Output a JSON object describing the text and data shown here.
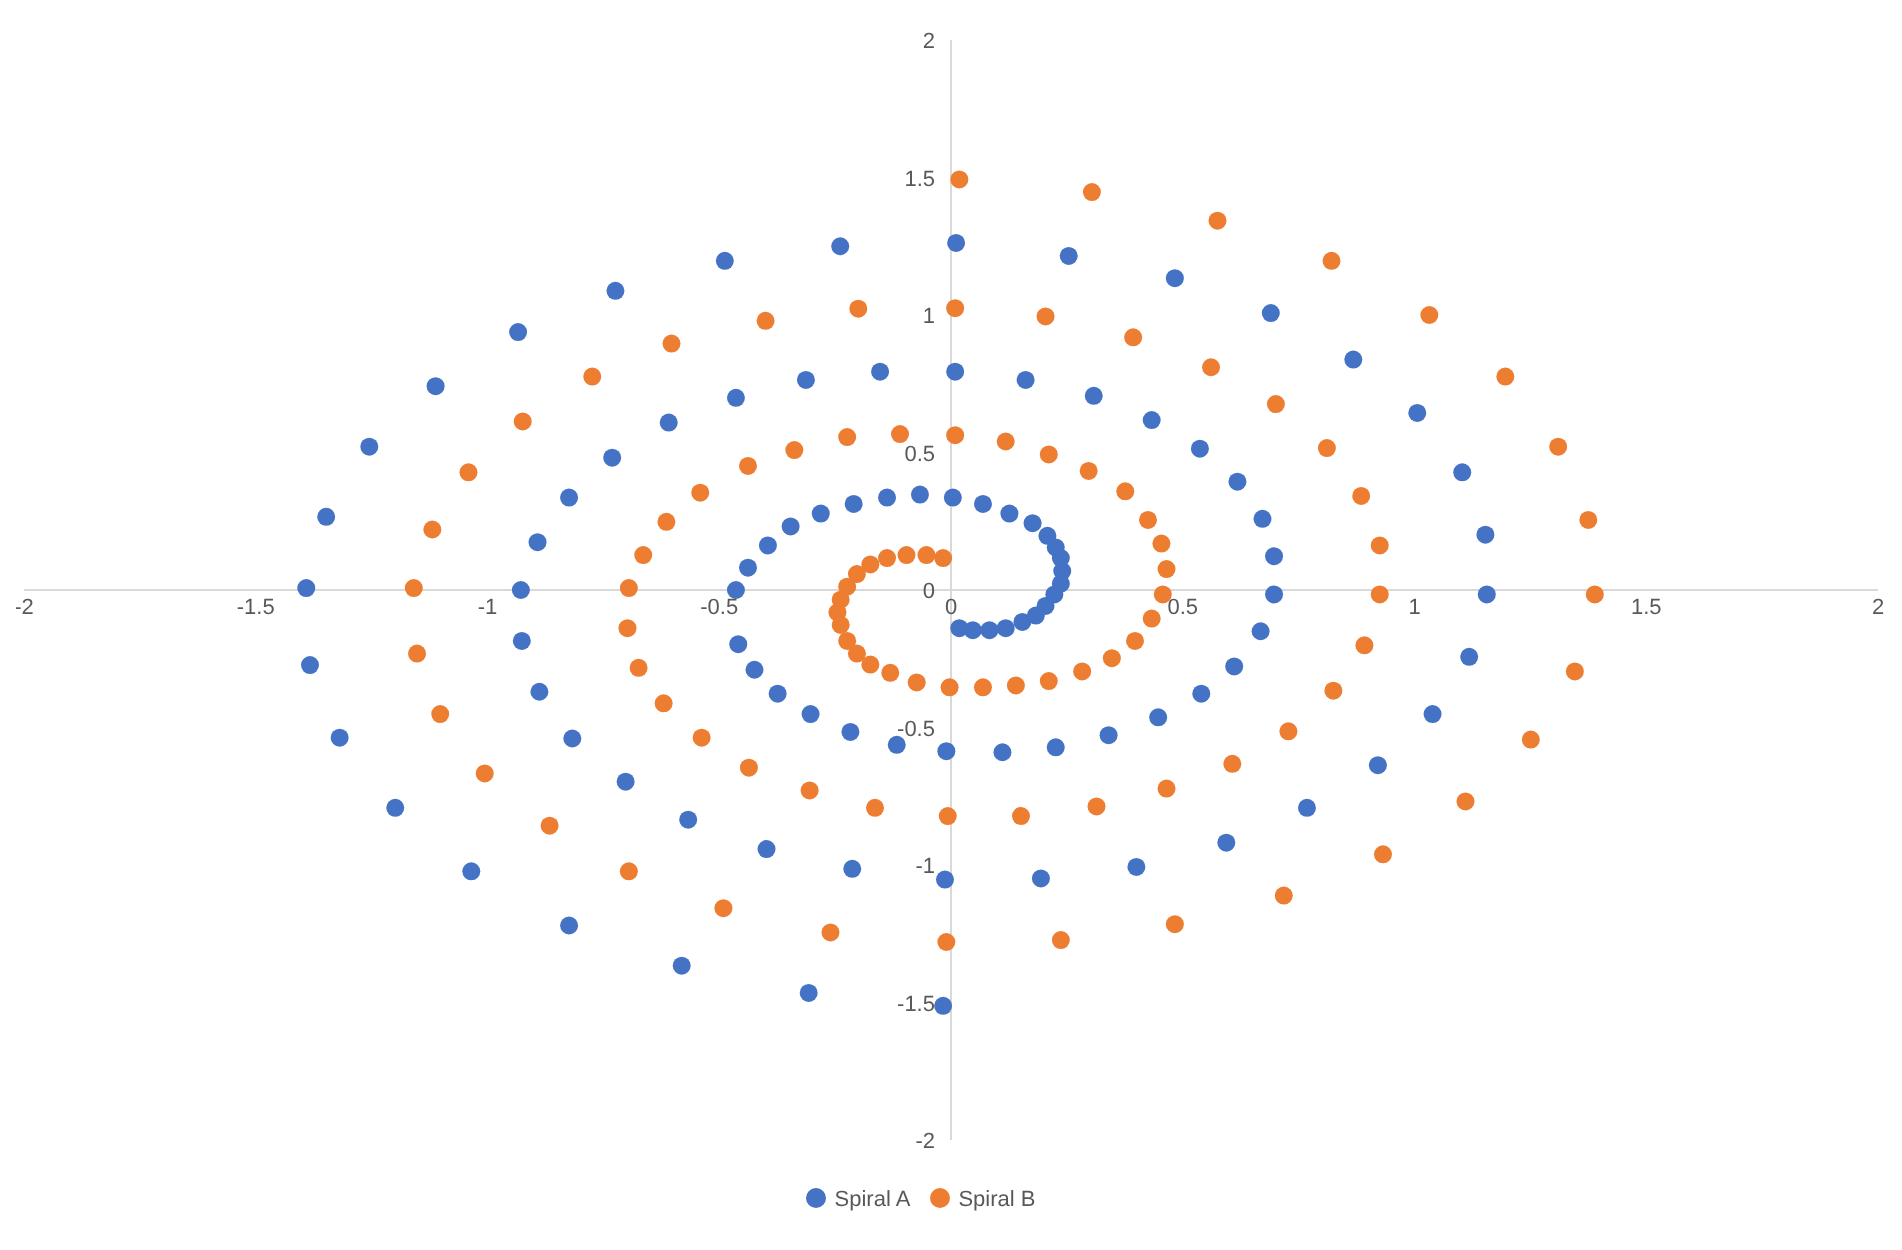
{
  "chart_data": {
    "type": "scatter",
    "xlim": [
      -2,
      2
    ],
    "ylim": [
      -2,
      2
    ],
    "xticks": [
      -2,
      -1.5,
      -1,
      -0.5,
      0,
      0.5,
      1,
      1.5,
      2
    ],
    "yticks": [
      -2,
      -1.5,
      -1,
      -0.5,
      0,
      0.5,
      1,
      1.5,
      2
    ],
    "grid": false,
    "legend": "bottom",
    "marker": "circle",
    "series": [
      {
        "name": "Spiral A",
        "color": "#4472c4",
        "x": [
          0.018,
          0.047,
          0.083,
          0.118,
          0.154,
          0.183,
          0.204,
          0.223,
          0.237,
          0.24,
          0.237,
          0.226,
          0.208,
          0.176,
          0.126,
          0.069,
          0.004,
          -0.067,
          -0.138,
          -0.21,
          -0.281,
          -0.346,
          -0.395,
          -0.438,
          -0.464,
          -0.459,
          -0.424,
          -0.374,
          -0.303,
          -0.217,
          -0.117,
          -0.01,
          0.111,
          0.226,
          0.34,
          0.447,
          0.54,
          0.611,
          0.668,
          0.697,
          0.697,
          0.672,
          0.618,
          0.537,
          0.433,
          0.308,
          0.161,
          0.009,
          -0.153,
          -0.313,
          -0.464,
          -0.609,
          -0.731,
          -0.824,
          -0.892,
          -0.928,
          -0.926,
          -0.888,
          -0.817,
          -0.702,
          -0.567,
          -0.398,
          -0.213,
          -0.013,
          0.194,
          0.4,
          0.594,
          0.768,
          0.921,
          1.039,
          1.118,
          1.156,
          1.153,
          1.103,
          1.006,
          0.868,
          0.69,
          0.483,
          0.254,
          0.011,
          -0.239,
          -0.488,
          -0.724,
          -0.934,
          -1.112,
          -1.255,
          -1.348,
          -1.391,
          -1.383,
          -1.319,
          -1.199,
          -1.035,
          -0.824,
          -0.581,
          -0.307,
          -0.017
        ],
        "values": [
          -0.139,
          -0.146,
          -0.146,
          -0.139,
          -0.116,
          -0.093,
          -0.058,
          -0.016,
          0.023,
          0.069,
          0.116,
          0.155,
          0.197,
          0.243,
          0.278,
          0.313,
          0.336,
          0.347,
          0.336,
          0.313,
          0.278,
          0.231,
          0.162,
          0.081,
          0,
          -0.197,
          -0.29,
          -0.377,
          -0.451,
          -0.516,
          -0.563,
          -0.586,
          -0.59,
          -0.572,
          -0.528,
          -0.463,
          -0.377,
          -0.278,
          -0.15,
          -0.016,
          0.123,
          0.259,
          0.394,
          0.514,
          0.618,
          0.706,
          0.764,
          0.794,
          0.794,
          0.764,
          0.699,
          0.609,
          0.481,
          0.336,
          0.174,
          0,
          -0.185,
          -0.37,
          -0.54,
          -0.697,
          -0.835,
          -0.942,
          -1.014,
          -1.053,
          -1.049,
          -1.007,
          -0.919,
          -0.792,
          -0.637,
          -0.451,
          -0.243,
          -0.016,
          0.201,
          0.428,
          0.644,
          0.838,
          1.007,
          1.134,
          1.215,
          1.262,
          1.25,
          1.197,
          1.088,
          0.938,
          0.741,
          0.521,
          0.266,
          0.007,
          -0.273,
          -0.537,
          -0.792,
          -1.023,
          -1.22,
          -1.366,
          -1.465,
          -1.512
        ]
      },
      {
        "name": "Spiral B",
        "color": "#ed7d31",
        "x": [
          -0.017,
          -0.053,
          -0.096,
          -0.138,
          -0.174,
          -0.203,
          -0.224,
          -0.238,
          -0.245,
          -0.238,
          -0.224,
          -0.203,
          -0.174,
          -0.131,
          -0.074,
          -0.003,
          0.069,
          0.14,
          0.211,
          0.283,
          0.347,
          0.397,
          0.433,
          0.457,
          0.465,
          0.454,
          0.425,
          0.376,
          0.297,
          0.211,
          0.118,
          0.009,
          -0.11,
          -0.224,
          -0.338,
          -0.438,
          -0.541,
          -0.614,
          -0.664,
          -0.695,
          -0.698,
          -0.674,
          -0.62,
          -0.538,
          -0.436,
          -0.305,
          -0.164,
          -0.007,
          0.151,
          0.314,
          0.465,
          0.607,
          0.728,
          0.825,
          0.892,
          0.925,
          0.925,
          0.885,
          0.811,
          0.701,
          0.561,
          0.393,
          0.204,
          0.009,
          -0.2,
          -0.4,
          -0.603,
          -0.774,
          -0.924,
          -1.041,
          -1.119,
          -1.159,
          -1.152,
          -1.102,
          -1.006,
          -0.866,
          -0.695,
          -0.491,
          -0.26,
          -0.01,
          0.237,
          0.483,
          0.718,
          0.932,
          1.11,
          1.251,
          1.346,
          1.389,
          1.375,
          1.31,
          1.196,
          1.032,
          0.821,
          0.575,
          0.304,
          0.018
        ],
        "values": [
          0.116,
          0.127,
          0.127,
          0.116,
          0.093,
          0.058,
          0.012,
          -0.035,
          -0.081,
          -0.127,
          -0.185,
          -0.231,
          -0.271,
          -0.301,
          -0.336,
          -0.354,
          -0.354,
          -0.347,
          -0.331,
          -0.296,
          -0.248,
          -0.185,
          -0.104,
          -0.016,
          0.076,
          0.169,
          0.255,
          0.359,
          0.433,
          0.493,
          0.54,
          0.563,
          0.567,
          0.556,
          0.509,
          0.451,
          0.354,
          0.248,
          0.127,
          0.007,
          -0.139,
          -0.283,
          -0.412,
          -0.537,
          -0.646,
          -0.729,
          -0.792,
          -0.822,
          -0.822,
          -0.787,
          -0.722,
          -0.632,
          -0.514,
          -0.366,
          -0.201,
          -0.016,
          0.162,
          0.342,
          0.516,
          0.676,
          0.81,
          0.919,
          0.995,
          1.025,
          1.023,
          0.979,
          0.896,
          0.776,
          0.613,
          0.428,
          0.22,
          0.007,
          -0.231,
          -0.451,
          -0.667,
          -0.857,
          -1.023,
          -1.157,
          -1.245,
          -1.28,
          -1.273,
          -1.215,
          -1.111,
          -0.961,
          -0.769,
          -0.544,
          -0.296,
          -0.016,
          0.255,
          0.521,
          0.776,
          1.0,
          1.197,
          1.343,
          1.447,
          1.493
        ]
      }
    ]
  }
}
